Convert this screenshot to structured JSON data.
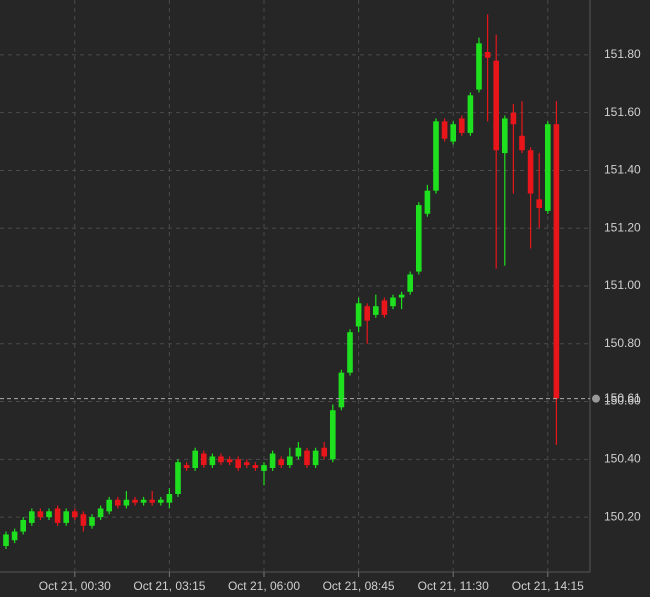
{
  "chart_data": {
    "type": "candlestick",
    "categories": [
      null,
      null,
      null,
      null,
      null,
      null,
      null,
      null,
      "Oct 21, 00:30",
      null,
      null,
      null,
      null,
      null,
      null,
      null,
      null,
      null,
      null,
      "Oct 21, 03:15",
      null,
      null,
      null,
      null,
      null,
      null,
      null,
      null,
      null,
      null,
      "Oct 21, 06:00",
      null,
      null,
      null,
      null,
      null,
      null,
      null,
      null,
      null,
      null,
      "Oct 21, 08:45",
      null,
      null,
      null,
      null,
      null,
      null,
      null,
      null,
      null,
      null,
      "Oct 21, 11:30",
      null,
      null,
      null,
      null,
      null,
      null,
      null,
      null,
      null,
      null,
      "Oct 21, 14:15",
      null
    ],
    "open": [
      150.1,
      150.12,
      150.15,
      150.18,
      150.22,
      150.2,
      150.23,
      150.18,
      150.22,
      150.21,
      150.17,
      150.2,
      150.22,
      150.26,
      150.24,
      150.26,
      150.25,
      150.26,
      150.25,
      150.25,
      150.28,
      150.38,
      150.37,
      150.42,
      150.38,
      150.41,
      150.4,
      150.4,
      150.39,
      150.38,
      150.36,
      150.37,
      150.4,
      150.38,
      150.41,
      150.43,
      150.38,
      150.44,
      150.4,
      150.58,
      150.7,
      150.86,
      150.93,
      150.9,
      150.95,
      150.93,
      150.96,
      150.98,
      151.05,
      151.25,
      151.33,
      151.57,
      151.5,
      151.58,
      151.53,
      151.68,
      151.81,
      151.78,
      151.46,
      151.6,
      151.52,
      151.47,
      151.3,
      151.26,
      151.56
    ],
    "high": [
      150.15,
      150.16,
      150.2,
      150.23,
      150.23,
      150.23,
      150.24,
      150.23,
      150.23,
      150.22,
      150.21,
      150.24,
      150.27,
      150.27,
      150.29,
      150.27,
      150.27,
      150.29,
      150.27,
      150.3,
      150.4,
      150.39,
      150.44,
      150.43,
      150.42,
      150.42,
      150.41,
      150.41,
      150.4,
      150.39,
      150.39,
      150.43,
      150.41,
      150.44,
      150.46,
      150.44,
      150.44,
      150.46,
      150.59,
      150.71,
      150.85,
      150.96,
      150.94,
      150.97,
      150.96,
      150.97,
      150.98,
      151.05,
      151.29,
      151.35,
      151.58,
      151.58,
      151.57,
      151.59,
      151.67,
      151.86,
      151.94,
      151.87,
      151.59,
      151.63,
      151.64,
      151.48,
      151.46,
      151.57,
      151.64
    ],
    "low": [
      150.09,
      150.11,
      150.14,
      150.17,
      150.19,
      150.19,
      150.17,
      150.17,
      150.19,
      150.15,
      150.16,
      150.19,
      150.21,
      150.23,
      150.23,
      150.24,
      150.24,
      150.24,
      150.24,
      150.23,
      150.27,
      150.36,
      150.36,
      150.37,
      150.37,
      150.38,
      150.38,
      150.36,
      150.37,
      150.36,
      150.31,
      150.36,
      150.37,
      150.37,
      150.4,
      150.37,
      150.37,
      150.4,
      150.39,
      150.57,
      150.69,
      150.84,
      150.8,
      150.89,
      150.89,
      150.92,
      150.92,
      150.97,
      151.04,
      151.24,
      151.32,
      151.5,
      151.49,
      151.52,
      151.52,
      151.67,
      151.57,
      151.06,
      151.07,
      151.32,
      151.46,
      151.13,
      151.2,
      151.25,
      150.45
    ],
    "close": [
      150.14,
      150.15,
      150.19,
      150.22,
      150.2,
      150.22,
      150.18,
      150.22,
      150.2,
      150.17,
      150.2,
      150.23,
      150.26,
      150.24,
      150.26,
      150.25,
      150.26,
      150.25,
      150.26,
      150.28,
      150.39,
      150.37,
      150.43,
      150.38,
      150.41,
      150.39,
      150.39,
      150.37,
      150.38,
      150.37,
      150.38,
      150.42,
      150.38,
      150.41,
      150.44,
      150.38,
      150.43,
      150.41,
      150.57,
      150.7,
      150.84,
      150.94,
      150.88,
      150.93,
      150.9,
      150.96,
      150.97,
      151.04,
      151.28,
      151.33,
      151.57,
      151.51,
      151.56,
      151.53,
      151.66,
      151.84,
      151.79,
      151.47,
      151.58,
      151.56,
      151.47,
      151.32,
      151.27,
      151.56,
      150.61
    ],
    "up_color": "#1fe01f",
    "down_color": "#e8161b",
    "ylim": [
      150.01,
      151.99
    ],
    "yticks": [
      {
        "value": 150.2,
        "label": "150.20"
      },
      {
        "value": 150.4,
        "label": "150.40"
      },
      {
        "value": 150.6,
        "label": "150.60"
      },
      {
        "value": 150.8,
        "label": "150.80"
      },
      {
        "value": 151.0,
        "label": "151.00"
      },
      {
        "value": 151.2,
        "label": "151.20"
      },
      {
        "value": 151.4,
        "label": "151.40"
      },
      {
        "value": 151.6,
        "label": "151.60"
      },
      {
        "value": 151.8,
        "label": "151.80"
      }
    ],
    "grid": true,
    "current_price": 150.61
  }
}
